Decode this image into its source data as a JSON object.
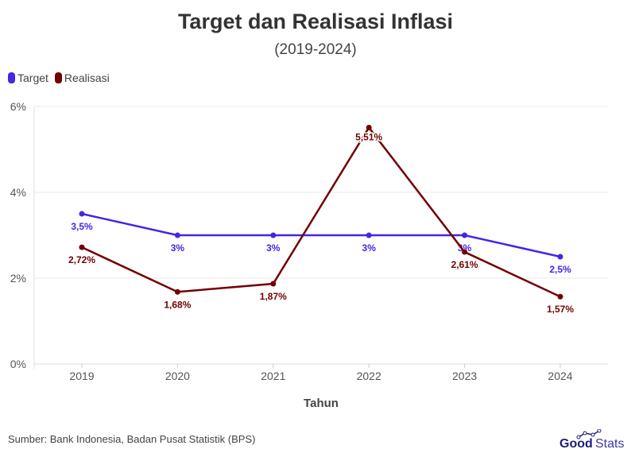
{
  "title": "Target dan Realisasi Inflasi",
  "subtitle": "(2019-2024)",
  "source": "Sumber: Bank Indonesia, Badan Pusat Statistik (BPS)",
  "logo": {
    "text_bold": "Good",
    "text_light": "Stats"
  },
  "chart_data": {
    "type": "line",
    "title": "Target dan Realisasi Inflasi",
    "xlabel": "Tahun",
    "ylabel": "",
    "categories": [
      "2019",
      "2020",
      "2021",
      "2022",
      "2023",
      "2024"
    ],
    "ylim": [
      0,
      6
    ],
    "yticks": [
      "0%",
      "2%",
      "4%",
      "6%"
    ],
    "grid": true,
    "legend_position": "top-left",
    "series": [
      {
        "name": "Target",
        "color": "#4525e6",
        "values": [
          3.5,
          3,
          3,
          3,
          3,
          2.5
        ],
        "labels": [
          "3,5%",
          "3%",
          "3%",
          "3%",
          "3%",
          "2,5%"
        ]
      },
      {
        "name": "Realisasi",
        "color": "#730000",
        "values": [
          2.72,
          1.68,
          1.87,
          5.51,
          2.61,
          1.57
        ],
        "labels": [
          "2,72%",
          "1,68%",
          "1,87%",
          "5,51%",
          "2,61%",
          "1,57%"
        ]
      }
    ]
  }
}
